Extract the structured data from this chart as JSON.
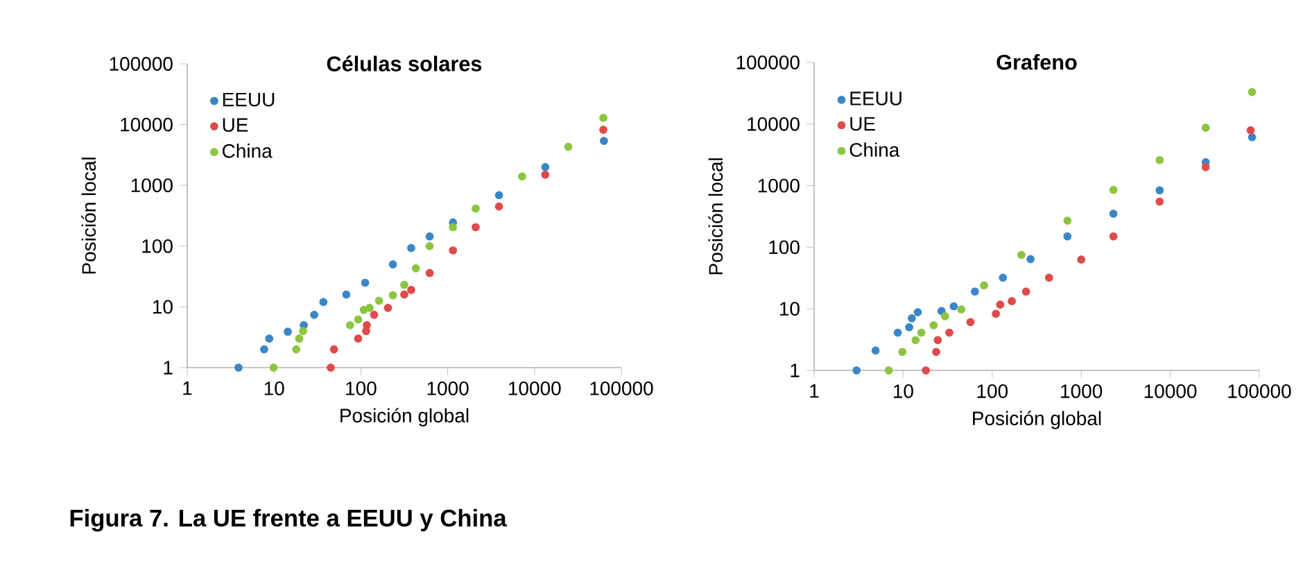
{
  "chart_data": [
    {
      "type": "scatter",
      "title": "Células solares",
      "xlabel": "Posición global",
      "ylabel": "Posición local",
      "log": "xy",
      "marker": "circle",
      "legend": "top left",
      "xlim": [
        1,
        100000
      ],
      "ylim": [
        1,
        100000
      ],
      "xticks": [
        1,
        10,
        100,
        1000,
        10000,
        100000
      ],
      "yticks": [
        1,
        10,
        100,
        1000,
        10000,
        100000
      ],
      "annotations": [
        "Figura 7. La UE frente a EEUU y China"
      ],
      "series": [
        {
          "name": "EEUU",
          "color": "#3a87c8",
          "x": [
            3.9,
            7.7,
            8.8,
            14.4,
            22,
            29,
            37,
            68,
            112,
            234,
            380,
            620,
            1150,
            3900,
            13300,
            63000
          ],
          "values": [
            1,
            2,
            3,
            3.9,
            5,
            7.4,
            12,
            16,
            25,
            50,
            93,
            144,
            245,
            690,
            2000,
            5400
          ]
        },
        {
          "name": "UE",
          "color": "#e04a4a",
          "x": [
            45,
            49,
            93,
            115,
            117,
            142,
            205,
            316,
            380,
            620,
            1150,
            2100,
            3900,
            13300,
            62000
          ],
          "values": [
            1,
            2,
            3,
            4,
            5,
            7.4,
            9.6,
            16,
            19,
            36,
            85,
            205,
            450,
            1500,
            8200
          ]
        },
        {
          "name": "China",
          "color": "#8cc540",
          "x": [
            9.9,
            18,
            19.5,
            21.6,
            75,
            93,
            108,
            126,
            162,
            234,
            316,
            430,
            620,
            1150,
            2100,
            7200,
            24500,
            62000
          ],
          "values": [
            1,
            2,
            3,
            4,
            5,
            6.2,
            8.9,
            9.6,
            12.6,
            15.5,
            23,
            43,
            100,
            205,
            415,
            1400,
            4300,
            12900
          ]
        }
      ]
    },
    {
      "type": "scatter",
      "title": "Grafeno",
      "xlabel": "Posición global",
      "ylabel": "Posición local",
      "log": "xy",
      "marker": "circle",
      "legend": "top left",
      "xlim": [
        1,
        100000
      ],
      "ylim": [
        1,
        100000
      ],
      "xticks": [
        1,
        10,
        100,
        1000,
        10000,
        100000
      ],
      "yticks": [
        1,
        10,
        100,
        1000,
        10000,
        100000
      ],
      "series": [
        {
          "name": "EEUU",
          "color": "#3a87c8",
          "x": [
            3,
            4.9,
            8.7,
            11.7,
            12.5,
            14.6,
            27,
            37,
            64,
            132,
            270,
            700,
            2300,
            7600,
            25000,
            83000
          ],
          "values": [
            1,
            2.1,
            4.1,
            5,
            7,
            8.8,
            9.2,
            11,
            19,
            32,
            64,
            150,
            350,
            840,
            2400,
            6100
          ]
        },
        {
          "name": "UE",
          "color": "#e04a4a",
          "x": [
            18,
            23.5,
            24.5,
            33,
            57,
            110,
            123,
            166,
            240,
            435,
            1000,
            2300,
            7600,
            25000,
            80000
          ],
          "values": [
            1,
            2,
            3.1,
            4.1,
            6.1,
            8.3,
            11.7,
            13.3,
            19,
            32,
            63,
            150,
            550,
            2000,
            7900
          ]
        },
        {
          "name": "China",
          "color": "#8cc540",
          "x": [
            6.9,
            9.8,
            13.8,
            16,
            22,
            29.5,
            45,
            81,
            213,
            700,
            2300,
            7600,
            25000,
            83000
          ],
          "values": [
            1,
            2,
            3.1,
            4.1,
            5.4,
            7.6,
            9.8,
            24,
            75,
            270,
            850,
            2600,
            8700,
            33000
          ]
        }
      ]
    }
  ]
}
